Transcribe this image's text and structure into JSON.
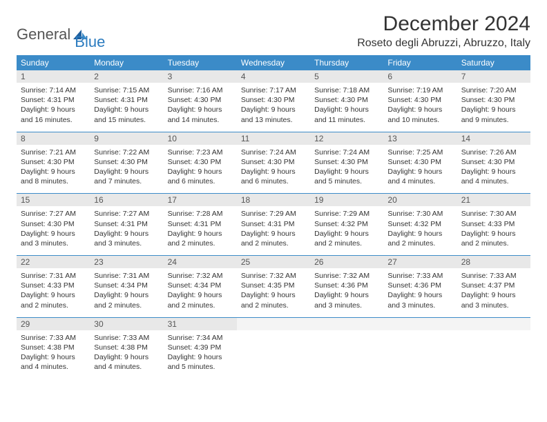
{
  "logo": {
    "general": "General",
    "blue": "Blue"
  },
  "title": "December 2024",
  "location": "Roseto degli Abruzzi, Abruzzo, Italy",
  "colors": {
    "header_bg": "#3b8bc8",
    "header_fg": "#ffffff",
    "daynum_bg": "#e8e8e8",
    "border": "#3b8bc8",
    "logo_blue": "#2b7bbf"
  },
  "weekdays": [
    "Sunday",
    "Monday",
    "Tuesday",
    "Wednesday",
    "Thursday",
    "Friday",
    "Saturday"
  ],
  "weeks": [
    [
      {
        "n": "1",
        "sr": "7:14 AM",
        "ss": "4:31 PM",
        "dl": "9 hours and 16 minutes."
      },
      {
        "n": "2",
        "sr": "7:15 AM",
        "ss": "4:31 PM",
        "dl": "9 hours and 15 minutes."
      },
      {
        "n": "3",
        "sr": "7:16 AM",
        "ss": "4:30 PM",
        "dl": "9 hours and 14 minutes."
      },
      {
        "n": "4",
        "sr": "7:17 AM",
        "ss": "4:30 PM",
        "dl": "9 hours and 13 minutes."
      },
      {
        "n": "5",
        "sr": "7:18 AM",
        "ss": "4:30 PM",
        "dl": "9 hours and 11 minutes."
      },
      {
        "n": "6",
        "sr": "7:19 AM",
        "ss": "4:30 PM",
        "dl": "9 hours and 10 minutes."
      },
      {
        "n": "7",
        "sr": "7:20 AM",
        "ss": "4:30 PM",
        "dl": "9 hours and 9 minutes."
      }
    ],
    [
      {
        "n": "8",
        "sr": "7:21 AM",
        "ss": "4:30 PM",
        "dl": "9 hours and 8 minutes."
      },
      {
        "n": "9",
        "sr": "7:22 AM",
        "ss": "4:30 PM",
        "dl": "9 hours and 7 minutes."
      },
      {
        "n": "10",
        "sr": "7:23 AM",
        "ss": "4:30 PM",
        "dl": "9 hours and 6 minutes."
      },
      {
        "n": "11",
        "sr": "7:24 AM",
        "ss": "4:30 PM",
        "dl": "9 hours and 6 minutes."
      },
      {
        "n": "12",
        "sr": "7:24 AM",
        "ss": "4:30 PM",
        "dl": "9 hours and 5 minutes."
      },
      {
        "n": "13",
        "sr": "7:25 AM",
        "ss": "4:30 PM",
        "dl": "9 hours and 4 minutes."
      },
      {
        "n": "14",
        "sr": "7:26 AM",
        "ss": "4:30 PM",
        "dl": "9 hours and 4 minutes."
      }
    ],
    [
      {
        "n": "15",
        "sr": "7:27 AM",
        "ss": "4:30 PM",
        "dl": "9 hours and 3 minutes."
      },
      {
        "n": "16",
        "sr": "7:27 AM",
        "ss": "4:31 PM",
        "dl": "9 hours and 3 minutes."
      },
      {
        "n": "17",
        "sr": "7:28 AM",
        "ss": "4:31 PM",
        "dl": "9 hours and 2 minutes."
      },
      {
        "n": "18",
        "sr": "7:29 AM",
        "ss": "4:31 PM",
        "dl": "9 hours and 2 minutes."
      },
      {
        "n": "19",
        "sr": "7:29 AM",
        "ss": "4:32 PM",
        "dl": "9 hours and 2 minutes."
      },
      {
        "n": "20",
        "sr": "7:30 AM",
        "ss": "4:32 PM",
        "dl": "9 hours and 2 minutes."
      },
      {
        "n": "21",
        "sr": "7:30 AM",
        "ss": "4:33 PM",
        "dl": "9 hours and 2 minutes."
      }
    ],
    [
      {
        "n": "22",
        "sr": "7:31 AM",
        "ss": "4:33 PM",
        "dl": "9 hours and 2 minutes."
      },
      {
        "n": "23",
        "sr": "7:31 AM",
        "ss": "4:34 PM",
        "dl": "9 hours and 2 minutes."
      },
      {
        "n": "24",
        "sr": "7:32 AM",
        "ss": "4:34 PM",
        "dl": "9 hours and 2 minutes."
      },
      {
        "n": "25",
        "sr": "7:32 AM",
        "ss": "4:35 PM",
        "dl": "9 hours and 2 minutes."
      },
      {
        "n": "26",
        "sr": "7:32 AM",
        "ss": "4:36 PM",
        "dl": "9 hours and 3 minutes."
      },
      {
        "n": "27",
        "sr": "7:33 AM",
        "ss": "4:36 PM",
        "dl": "9 hours and 3 minutes."
      },
      {
        "n": "28",
        "sr": "7:33 AM",
        "ss": "4:37 PM",
        "dl": "9 hours and 3 minutes."
      }
    ],
    [
      {
        "n": "29",
        "sr": "7:33 AM",
        "ss": "4:38 PM",
        "dl": "9 hours and 4 minutes."
      },
      {
        "n": "30",
        "sr": "7:33 AM",
        "ss": "4:38 PM",
        "dl": "9 hours and 4 minutes."
      },
      {
        "n": "31",
        "sr": "7:34 AM",
        "ss": "4:39 PM",
        "dl": "9 hours and 5 minutes."
      },
      null,
      null,
      null,
      null
    ]
  ],
  "labels": {
    "sunrise": "Sunrise:",
    "sunset": "Sunset:",
    "daylight": "Daylight:"
  }
}
